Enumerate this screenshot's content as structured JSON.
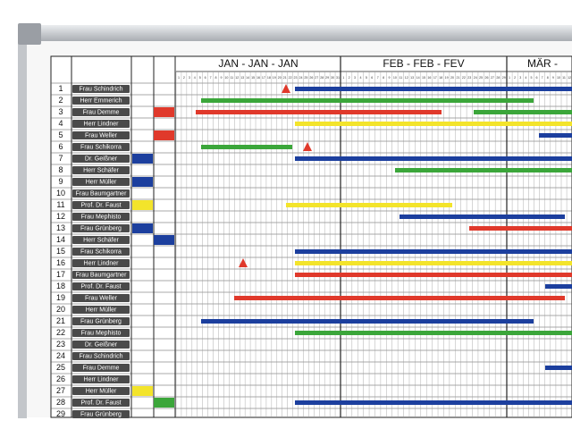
{
  "months": [
    {
      "label": "JAN - JAN - JAN",
      "days": [
        1,
        2,
        3,
        4,
        5,
        6,
        7,
        8,
        9,
        10,
        11,
        12,
        13,
        14,
        15,
        16,
        17,
        18,
        19,
        20,
        21,
        22,
        23,
        24,
        25,
        26,
        27,
        28,
        29,
        30,
        31
      ]
    },
    {
      "label": "FEB - FEB - FEV",
      "days": [
        1,
        2,
        3,
        4,
        5,
        6,
        7,
        8,
        9,
        10,
        11,
        12,
        13,
        14,
        15,
        16,
        17,
        18,
        19,
        20,
        21,
        22,
        23,
        24,
        25,
        26,
        27,
        28,
        29
      ]
    },
    {
      "label": "MÄR -",
      "days": [
        1,
        2,
        3,
        4,
        5,
        6,
        7,
        8,
        9,
        10,
        11,
        12
      ]
    }
  ],
  "rows": [
    {
      "number": 1,
      "name": "Frau Schindrich"
    },
    {
      "number": 2,
      "name": "Herr Emmerich"
    },
    {
      "number": 3,
      "name": "Frau Demme"
    },
    {
      "number": 4,
      "name": "Herr Lindner"
    },
    {
      "number": 5,
      "name": "Frau Weller"
    },
    {
      "number": 6,
      "name": "Frau Schikorra"
    },
    {
      "number": 7,
      "name": "Dr. Geißner"
    },
    {
      "number": 8,
      "name": "Herr Schäfer"
    },
    {
      "number": 9,
      "name": "Herr Müller"
    },
    {
      "number": 10,
      "name": "Frau Baumgartner"
    },
    {
      "number": 11,
      "name": "Prof. Dr. Faust"
    },
    {
      "number": 12,
      "name": "Frau Mephisto"
    },
    {
      "number": 13,
      "name": "Frau Grünberg"
    },
    {
      "number": 14,
      "name": "Herr Schäfer"
    },
    {
      "number": 15,
      "name": "Frau Schikorra"
    },
    {
      "number": 16,
      "name": "Herr Lindner"
    },
    {
      "number": 17,
      "name": "Frau Baumgartner"
    },
    {
      "number": 18,
      "name": "Prof. Dr. Faust"
    },
    {
      "number": 19,
      "name": "Frau Weller"
    },
    {
      "number": 20,
      "name": "Herr Müller"
    },
    {
      "number": 21,
      "name": "Frau Grünberg"
    },
    {
      "number": 22,
      "name": "Frau Mephisto"
    },
    {
      "number": 23,
      "name": "Dr. Geißner"
    },
    {
      "number": 24,
      "name": "Frau Schindrich"
    },
    {
      "number": 25,
      "name": "Frau Demme"
    },
    {
      "number": 26,
      "name": "Herr Lindner"
    },
    {
      "number": 27,
      "name": "Herr Müller"
    },
    {
      "number": 28,
      "name": "Prof. Dr. Faust"
    },
    {
      "number": 29,
      "name": "Frau Grünberg"
    }
  ]
}
